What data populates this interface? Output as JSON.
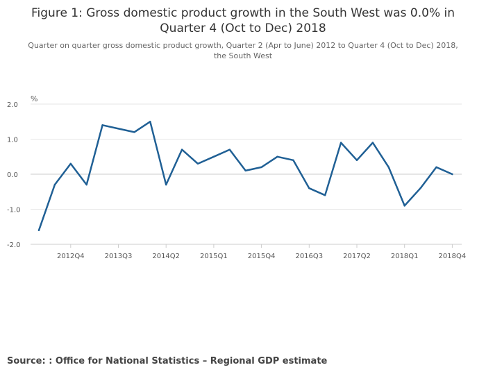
{
  "chart_data": {
    "type": "line",
    "title": "Figure 1: Gross domestic product growth in the South West was 0.0% in Quarter 4 (Oct to Dec) 2018",
    "subtitle": "Quarter on quarter gross domestic product growth, Quarter 2 (Apr to June) 2012 to Quarter 4 (Oct to Dec) 2018, the South West",
    "ylabel": "%",
    "xlabel": "",
    "ylim": [
      -2.0,
      2.0
    ],
    "yticks": [
      "2.0",
      "1.0",
      "0.0",
      "-1.0",
      "-2.0"
    ],
    "ytick_values": [
      2.0,
      1.0,
      0.0,
      -1.0,
      -2.0
    ],
    "x": [
      "2012Q2",
      "2012Q3",
      "2012Q4",
      "2013Q1",
      "2013Q2",
      "2013Q3",
      "2013Q4",
      "2014Q1",
      "2014Q2",
      "2014Q3",
      "2014Q4",
      "2015Q1",
      "2015Q2",
      "2015Q3",
      "2015Q4",
      "2016Q1",
      "2016Q2",
      "2016Q3",
      "2016Q4",
      "2017Q1",
      "2017Q2",
      "2017Q3",
      "2017Q4",
      "2018Q1",
      "2018Q2",
      "2018Q3",
      "2018Q4"
    ],
    "xtick_labels": [
      "2012Q4",
      "2013Q3",
      "2014Q2",
      "2015Q1",
      "2015Q4",
      "2016Q3",
      "2017Q2",
      "2018Q1",
      "2018Q4"
    ],
    "series": [
      {
        "name": "South West",
        "color": "#206095",
        "values": [
          -1.6,
          -0.3,
          0.3,
          -0.3,
          1.4,
          1.3,
          1.2,
          1.5,
          -0.3,
          0.7,
          0.3,
          0.5,
          0.7,
          0.1,
          0.2,
          0.5,
          0.4,
          -0.4,
          -0.6,
          0.9,
          0.4,
          0.9,
          0.2,
          -0.9,
          -0.4,
          0.2,
          0.0
        ]
      }
    ],
    "grid": true
  },
  "source": "Source: : Office for National Statistics – Regional GDP estimate"
}
